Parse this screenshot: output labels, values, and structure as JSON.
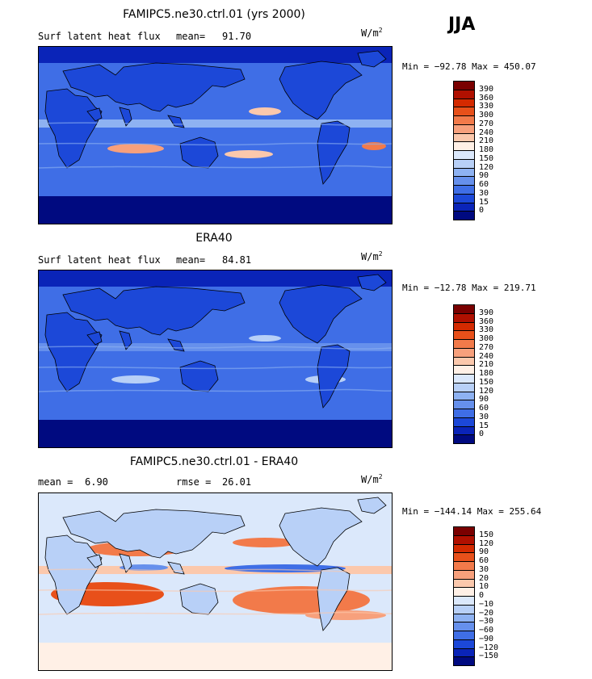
{
  "season": "JJA",
  "panels": [
    {
      "title": "FAMIPC5.ne30.ctrl.01 (yrs 2000)",
      "field_label": "Surf latent heat flux",
      "stat_label": "mean=",
      "stat_value": "91.70",
      "units": "W/m",
      "units_exp": "2",
      "minmax": "Min = −92.78  Max = 450.07",
      "style": "model"
    },
    {
      "title": "ERA40",
      "field_label": "Surf latent heat flux",
      "stat_label": "mean=",
      "stat_value": "84.81",
      "units": "W/m",
      "units_exp": "2",
      "minmax": "Min = −12.78  Max = 219.71",
      "style": "obs"
    },
    {
      "title": "FAMIPC5.ne30.ctrl.01 - ERA40",
      "field_label": "mean =",
      "field_value": "6.90",
      "stat_label": "rmse =",
      "stat_value": "26.01",
      "units": "W/m",
      "units_exp": "2",
      "minmax": "Min = −144.14  Max = 255.64",
      "style": "diff"
    }
  ],
  "legend_abs": {
    "labels": [
      "390",
      "360",
      "330",
      "300",
      "270",
      "240",
      "210",
      "180",
      "150",
      "120",
      "90",
      "60",
      "30",
      "15",
      "0"
    ],
    "colors": [
      "#7a0000",
      "#b01000",
      "#d42a00",
      "#e8501a",
      "#f27a4a",
      "#f7a07c",
      "#fbc8ac",
      "#fff0e6",
      "#dbe8fb",
      "#b8d0f7",
      "#8eb2f2",
      "#6690ec",
      "#3f6ee6",
      "#1c48d8",
      "#0a24b8",
      "#000a80"
    ]
  },
  "legend_diff": {
    "labels": [
      "150",
      "120",
      "90",
      "60",
      "30",
      "20",
      "10",
      "0",
      "−10",
      "−20",
      "−30",
      "−60",
      "−90",
      "−120",
      "−150"
    ],
    "colors": [
      "#7a0000",
      "#b01000",
      "#d42a00",
      "#e8501a",
      "#f27a4a",
      "#f7a07c",
      "#fbc8ac",
      "#fff0e6",
      "#dbe8fb",
      "#b8d0f7",
      "#8eb2f2",
      "#6690ec",
      "#3f6ee6",
      "#1c48d8",
      "#0a24b8",
      "#000a80"
    ]
  }
}
